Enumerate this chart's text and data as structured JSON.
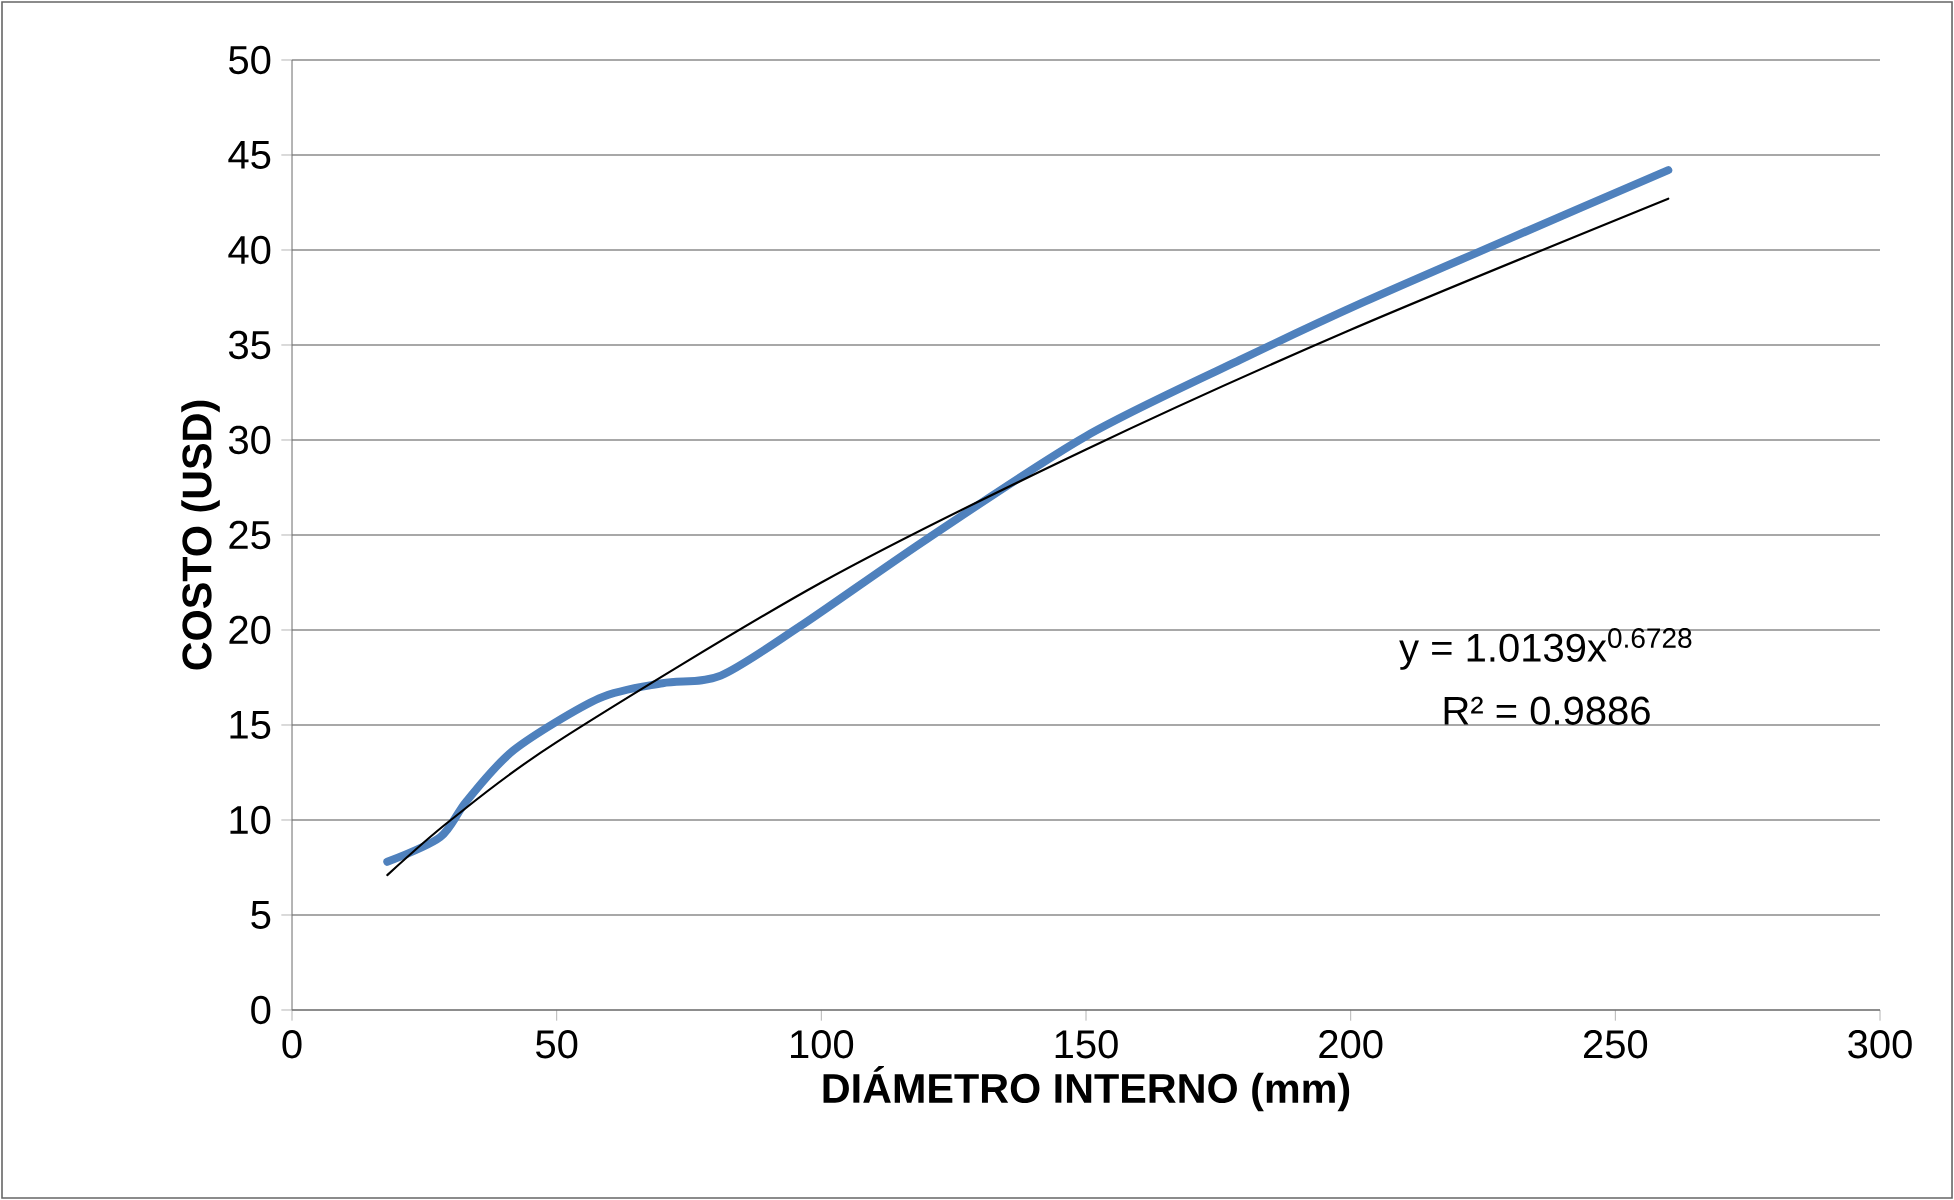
{
  "chart_data": {
    "type": "line",
    "xlabel": "DIÁMETRO INTERNO (mm)",
    "ylabel": "COSTO (USD)",
    "series": [
      {
        "color": "#4f81bd",
        "x": [
          18,
          28,
          33,
          42,
          58,
          70,
          81,
          96,
          120,
          150,
          179,
          202,
          230,
          260
        ],
        "values": [
          7.8,
          9.1,
          11.0,
          13.7,
          16.4,
          17.2,
          17.6,
          20.2,
          24.8,
          30.2,
          34.2,
          37.2,
          40.6,
          44.2
        ]
      },
      {
        "color": "#000000",
        "x": [
          18,
          30,
          50,
          100,
          150,
          200,
          260
        ],
        "values": [
          7.1,
          10.0,
          14.1,
          22.5,
          29.5,
          35.8,
          42.7
        ]
      }
    ],
    "annotations": [
      "y = 1.0139x$^{0.6728}$",
      "R² = 0.9886"
    ],
    "xlim": [
      0,
      300
    ],
    "xticks": [
      0,
      50,
      100,
      150,
      200,
      250,
      300
    ],
    "ylim": [
      0,
      50
    ],
    "yticks": [
      0,
      5,
      10,
      15,
      20,
      25,
      30,
      35,
      40,
      45,
      50
    ],
    "grid": "y"
  }
}
